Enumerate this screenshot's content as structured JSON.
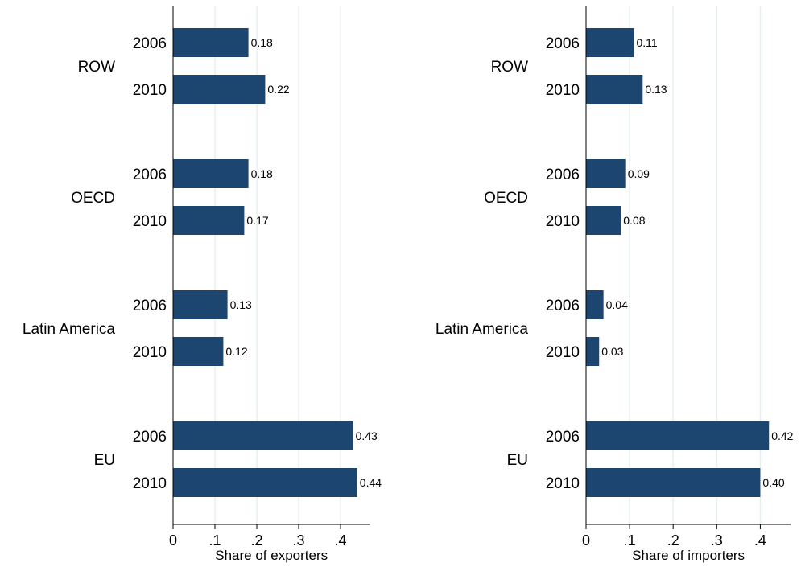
{
  "colors": {
    "bar": "#1c4670",
    "grid": "#e8eff1",
    "axis": "#000000"
  },
  "chart_data": [
    {
      "type": "bar",
      "orientation": "horizontal",
      "groups": [
        "ROW",
        "OECD",
        "Latin America",
        "EU"
      ],
      "categories": [
        "2006",
        "2010"
      ],
      "values": [
        [
          0.18,
          0.22
        ],
        [
          0.18,
          0.17
        ],
        [
          0.13,
          0.12
        ],
        [
          0.43,
          0.44
        ]
      ],
      "data_labels": [
        [
          "0.18",
          "0.22"
        ],
        [
          "0.18",
          "0.17"
        ],
        [
          "0.13",
          "0.12"
        ],
        [
          "0.43",
          "0.44"
        ]
      ],
      "xticks": [
        "0",
        ".1",
        ".2",
        ".3",
        ".4"
      ],
      "xtick_values": [
        0,
        0.1,
        0.2,
        0.3,
        0.4
      ],
      "xlim": [
        0,
        0.47
      ],
      "xlabel": "Share of exporters",
      "ylabel": "",
      "title": "",
      "grid": true
    },
    {
      "type": "bar",
      "orientation": "horizontal",
      "groups": [
        "ROW",
        "OECD",
        "Latin America",
        "EU"
      ],
      "categories": [
        "2006",
        "2010"
      ],
      "values": [
        [
          0.11,
          0.13
        ],
        [
          0.09,
          0.08
        ],
        [
          0.04,
          0.03
        ],
        [
          0.42,
          0.4
        ]
      ],
      "data_labels": [
        [
          "0.11",
          "0.13"
        ],
        [
          "0.09",
          "0.08"
        ],
        [
          "0.04",
          "0.03"
        ],
        [
          "0.42",
          "0.40"
        ]
      ],
      "xticks": [
        "0",
        ".1",
        ".2",
        ".3",
        ".4"
      ],
      "xtick_values": [
        0,
        0.1,
        0.2,
        0.3,
        0.4
      ],
      "xlim": [
        0,
        0.47
      ],
      "xlabel": "Share of importers",
      "ylabel": "",
      "title": "",
      "grid": true
    }
  ]
}
